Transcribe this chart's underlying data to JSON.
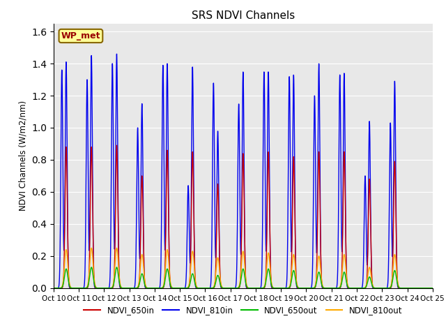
{
  "title": "SRS NDVI Channels",
  "ylabel": "NDVI Channels (W/m2/nm)",
  "site_label": "WP_met",
  "ylim": [
    0,
    1.65
  ],
  "yticks": [
    0.0,
    0.2,
    0.4,
    0.6,
    0.8,
    1.0,
    1.2,
    1.4,
    1.6
  ],
  "xtick_labels": [
    "Oct 10",
    "Oct 11",
    "Oct 12",
    "Oct 13",
    "Oct 14",
    "Oct 15",
    "Oct 16",
    "Oct 17",
    "Oct 18",
    "Oct 19",
    "Oct 20",
    "Oct 21",
    "Oct 22",
    "Oct 23",
    "Oct 24",
    "Oct 25"
  ],
  "colors": {
    "NDVI_650in": "#cc0000",
    "NDVI_810in": "#0000ee",
    "NDVI_650out": "#00bb00",
    "NDVI_810out": "#ffaa00"
  },
  "bg_color": "#e8e8e8",
  "fig_bg": "#ffffff",
  "peak_650in": [
    0.88,
    0.88,
    0.89,
    0.7,
    0.86,
    0.85,
    0.65,
    0.84,
    0.85,
    0.82,
    0.85,
    0.85,
    0.68,
    0.79
  ],
  "peak_810in": [
    1.41,
    1.45,
    1.46,
    1.15,
    1.4,
    1.38,
    0.98,
    1.35,
    1.35,
    1.33,
    1.4,
    1.34,
    1.04,
    1.29
  ],
  "peak_650out": [
    0.12,
    0.13,
    0.13,
    0.09,
    0.12,
    0.09,
    0.08,
    0.12,
    0.12,
    0.11,
    0.1,
    0.1,
    0.07,
    0.11
  ],
  "peak_810out": [
    0.24,
    0.25,
    0.25,
    0.21,
    0.24,
    0.23,
    0.19,
    0.23,
    0.22,
    0.21,
    0.2,
    0.21,
    0.13,
    0.21
  ],
  "peak_810in_early": [
    1.36,
    1.3,
    1.4,
    1.0,
    1.39,
    0.64,
    1.28,
    1.15,
    1.35,
    1.32,
    1.2,
    1.33,
    0.7,
    1.03
  ]
}
